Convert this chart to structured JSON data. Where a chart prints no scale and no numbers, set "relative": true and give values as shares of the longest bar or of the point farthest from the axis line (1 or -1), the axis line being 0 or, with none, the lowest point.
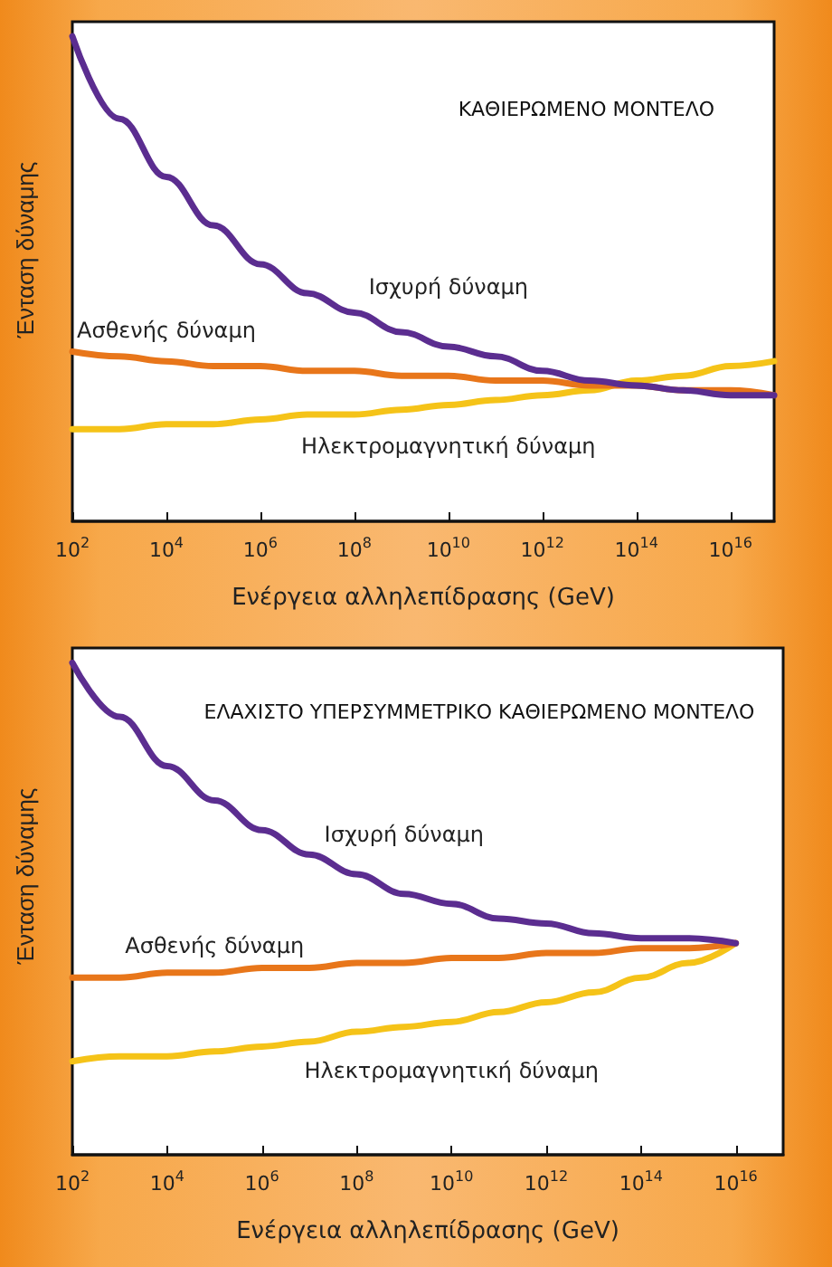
{
  "chart_data": [
    {
      "type": "line",
      "title": "ΚΑΘΙΕΡΩΜΕΝΟ ΜΟΝΤΕΛΟ",
      "xlabel": "Ενέργεια αλληλεπίδρασης (GeV)",
      "ylabel": "Ένταση δύναμης",
      "relative": true,
      "log": "x",
      "marker": "none",
      "xlim": [
        100,
        8.5e+16
      ],
      "xticks": [
        {
          "value": 100,
          "label": "10$^{2}$"
        },
        {
          "value": 10000,
          "label": "10$^{4}$"
        },
        {
          "value": 1000000,
          "label": "10$^{6}$"
        },
        {
          "value": 100000000,
          "label": "10$^{8}$"
        },
        {
          "value": 10000000000,
          "label": "10$^{10}$"
        },
        {
          "value": 1000000000000,
          "label": "10$^{12}$"
        },
        {
          "value": 100000000000000,
          "label": "10$^{14}$"
        },
        {
          "value": 10000000000000000,
          "label": "10$^{16}$"
        }
      ],
      "x": [
        100,
        1000,
        10000,
        100000,
        1000000,
        10000000,
        100000000,
        1000000000,
        10000000000,
        100000000000,
        1000000000000,
        10000000000000,
        100000000000000,
        1000000000000000,
        10000000000000000,
        8.5e+16
      ],
      "series": [
        {
          "name": "Ισχυρή δύναμη",
          "color": "#5b2d90",
          "values": [
            1.0,
            0.83,
            0.71,
            0.61,
            0.53,
            0.47,
            0.43,
            0.39,
            0.36,
            0.34,
            0.31,
            0.29,
            0.28,
            0.27,
            0.26,
            0.26
          ]
        },
        {
          "name": "Ασθενής δύναμη",
          "color": "#e8761a",
          "values": [
            0.35,
            0.34,
            0.33,
            0.32,
            0.32,
            0.31,
            0.31,
            0.3,
            0.3,
            0.29,
            0.29,
            0.28,
            0.28,
            0.27,
            0.27,
            0.26
          ]
        },
        {
          "name": "Ηλεκτρομαγνητική δύναμη",
          "color": "#f5c318",
          "values": [
            0.19,
            0.19,
            0.2,
            0.2,
            0.21,
            0.22,
            0.22,
            0.23,
            0.24,
            0.25,
            0.26,
            0.27,
            0.29,
            0.3,
            0.32,
            0.33
          ]
        }
      ]
    },
    {
      "type": "line",
      "title": "ΕΛΑΧΙΣΤΟ ΥΠΕΡΣΥΜΜΕΤΡΙΚΟ ΚΑΘΙΕΡΩΜΕΝΟ ΜΟΝΤΕΛΟ",
      "xlabel": "Ενέργεια αλληλεπίδρασης (GeV)",
      "ylabel": "Ένταση δύναμης",
      "relative": true,
      "log": "x",
      "marker": "none",
      "xlim": [
        100,
        1e+17
      ],
      "xticks": [
        {
          "value": 100,
          "label": "10$^{2}$"
        },
        {
          "value": 10000,
          "label": "10$^{4}$"
        },
        {
          "value": 1000000,
          "label": "10$^{6}$"
        },
        {
          "value": 100000000,
          "label": "10$^{8}$"
        },
        {
          "value": 10000000000,
          "label": "10$^{10}$"
        },
        {
          "value": 1000000000000,
          "label": "10$^{12}$"
        },
        {
          "value": 100000000000000,
          "label": "10$^{14}$"
        },
        {
          "value": 10000000000000000,
          "label": "10$^{16}$"
        }
      ],
      "x": [
        100,
        1000,
        10000,
        100000,
        1000000,
        10000000,
        100000000,
        1000000000,
        10000000000,
        100000000000,
        1000000000000,
        10000000000000,
        100000000000000,
        1000000000000000,
        10000000000000000
      ],
      "series": [
        {
          "name": "Ισχυρή δύναμη",
          "color": "#5b2d90",
          "values": [
            1.0,
            0.89,
            0.79,
            0.72,
            0.66,
            0.61,
            0.57,
            0.53,
            0.51,
            0.48,
            0.47,
            0.45,
            0.44,
            0.44,
            0.43
          ]
        },
        {
          "name": "Ασθενής δύναμη",
          "color": "#e8761a",
          "values": [
            0.36,
            0.36,
            0.37,
            0.37,
            0.38,
            0.38,
            0.39,
            0.39,
            0.4,
            0.4,
            0.41,
            0.41,
            0.42,
            0.42,
            0.43
          ]
        },
        {
          "name": "Ηλεκτρομαγνητική δύναμη",
          "color": "#f5c318",
          "values": [
            0.19,
            0.2,
            0.2,
            0.21,
            0.22,
            0.23,
            0.25,
            0.26,
            0.27,
            0.29,
            0.31,
            0.33,
            0.36,
            0.39,
            0.43
          ]
        }
      ]
    }
  ]
}
